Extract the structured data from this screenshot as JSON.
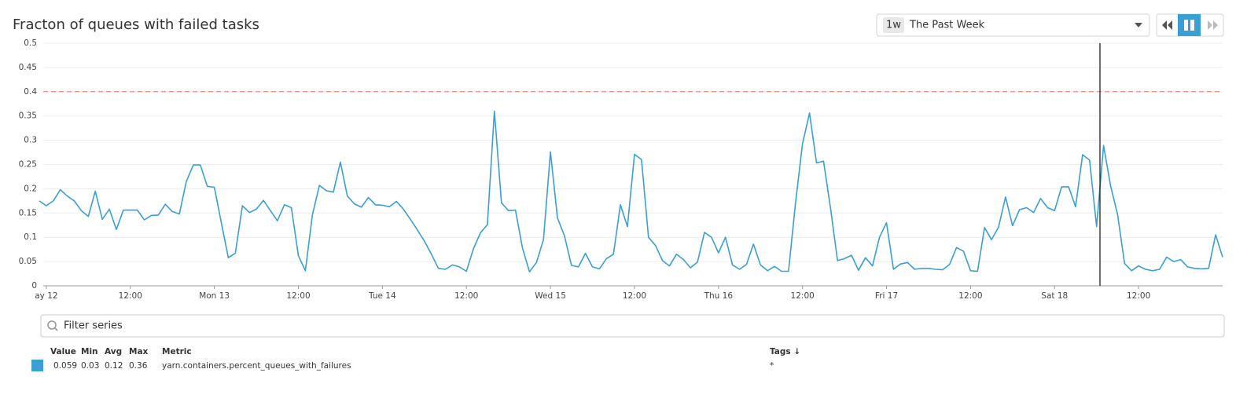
{
  "chart_data": {
    "type": "line",
    "title": "Fracton of queues with failed tasks",
    "categories": [
      null,
      "ay 12",
      null,
      null,
      null,
      null,
      null,
      null,
      null,
      null,
      null,
      null,
      null,
      "12:00",
      null,
      null,
      null,
      null,
      null,
      null,
      null,
      null,
      null,
      null,
      null,
      "Mon 13",
      null,
      null,
      null,
      null,
      null,
      null,
      null,
      null,
      null,
      null,
      null,
      "12:00",
      null,
      null,
      null,
      null,
      null,
      null,
      null,
      null,
      null,
      null,
      null,
      "Tue 14",
      null,
      null,
      null,
      null,
      null,
      null,
      null,
      null,
      null,
      null,
      null,
      "12:00",
      null,
      null,
      null,
      null,
      null,
      null,
      null,
      null,
      null,
      null,
      null,
      "Wed 15",
      null,
      null,
      null,
      null,
      null,
      null,
      null,
      null,
      null,
      null,
      null,
      "12:00",
      null,
      null,
      null,
      null,
      null,
      null,
      null,
      null,
      null,
      null,
      null,
      "Thu 16",
      null,
      null,
      null,
      null,
      null,
      null,
      null,
      null,
      null,
      null,
      null,
      "12:00",
      null,
      null,
      null,
      null,
      null,
      null,
      null,
      null,
      null,
      null,
      null,
      "Fri 17",
      null,
      null,
      null,
      null,
      null,
      null,
      null,
      null,
      null,
      null,
      null,
      "12:00",
      null,
      null,
      null,
      null,
      null,
      null,
      null,
      null,
      null,
      null,
      null,
      "Sat 18",
      null,
      null,
      null,
      null,
      null,
      null,
      null,
      null,
      null,
      null,
      null,
      "12:00",
      null,
      null,
      null,
      null,
      null,
      null,
      null,
      null,
      null,
      null,
      null,
      null
    ],
    "series": [
      {
        "name": "yarn.containers.percent_queues_with_failures",
        "color": "#3a9fd3",
        "values": [
          0.175,
          0.165,
          0.175,
          0.198,
          0.185,
          0.175,
          0.155,
          0.143,
          0.195,
          0.137,
          0.158,
          0.116,
          0.156,
          0.156,
          0.156,
          0.136,
          0.145,
          0.146,
          0.168,
          0.153,
          0.148,
          0.215,
          0.249,
          0.249,
          0.205,
          0.203,
          0.13,
          0.058,
          0.067,
          0.165,
          0.151,
          0.158,
          0.176,
          0.155,
          0.134,
          0.167,
          0.161,
          0.062,
          0.031,
          0.146,
          0.207,
          0.196,
          0.193,
          0.255,
          0.185,
          0.169,
          0.162,
          0.182,
          0.167,
          0.166,
          0.163,
          0.174,
          0.158,
          0.137,
          0.115,
          0.092,
          0.065,
          0.036,
          0.034,
          0.043,
          0.039,
          0.03,
          0.076,
          0.109,
          0.126,
          0.36,
          0.171,
          0.155,
          0.156,
          0.078,
          0.029,
          0.048,
          0.095,
          0.276,
          0.14,
          0.103,
          0.042,
          0.039,
          0.067,
          0.039,
          0.035,
          0.056,
          0.065,
          0.167,
          0.122,
          0.271,
          0.26,
          0.1,
          0.083,
          0.052,
          0.041,
          0.065,
          0.054,
          0.037,
          0.049,
          0.11,
          0.1,
          0.068,
          0.1,
          0.043,
          0.034,
          0.044,
          0.086,
          0.043,
          0.031,
          0.04,
          0.03,
          0.03,
          0.171,
          0.293,
          0.356,
          0.253,
          0.257,
          0.16,
          0.052,
          0.056,
          0.063,
          0.032,
          0.058,
          0.041,
          0.1,
          0.13,
          0.034,
          0.045,
          0.048,
          0.034,
          0.036,
          0.036,
          0.034,
          0.033,
          0.044,
          0.079,
          0.071,
          0.031,
          0.03,
          0.12,
          0.095,
          0.121,
          0.183,
          0.124,
          0.157,
          0.161,
          0.151,
          0.18,
          0.161,
          0.155,
          0.204,
          0.204,
          0.163,
          0.27,
          0.259,
          0.122,
          0.289,
          0.206,
          0.147,
          0.046,
          0.031,
          0.041,
          0.034,
          0.031,
          0.034,
          0.059,
          0.05,
          0.054,
          0.039,
          0.036,
          0.035,
          0.036,
          0.105,
          0.059
        ]
      }
    ],
    "ylim": [
      0,
      0.5
    ],
    "yticks": [
      0,
      0.05,
      0.1,
      0.15,
      0.2,
      0.25,
      0.3,
      0.35,
      0.4,
      0.45,
      0.5
    ],
    "grid": true,
    "threshold": 0.4,
    "threshold_color": "#f07070"
  },
  "timeframe": {
    "short": "1w",
    "label": "The Past Week"
  },
  "filter": {
    "placeholder": "Filter series"
  },
  "legend_table": {
    "headers": [
      "Value",
      "Min",
      "Avg",
      "Max",
      "Metric",
      "Tags ↓"
    ],
    "row": [
      "0.059",
      "0.03",
      "0.12",
      "0.36",
      "yarn.containers.percent_queues_with_failures",
      "*"
    ]
  }
}
